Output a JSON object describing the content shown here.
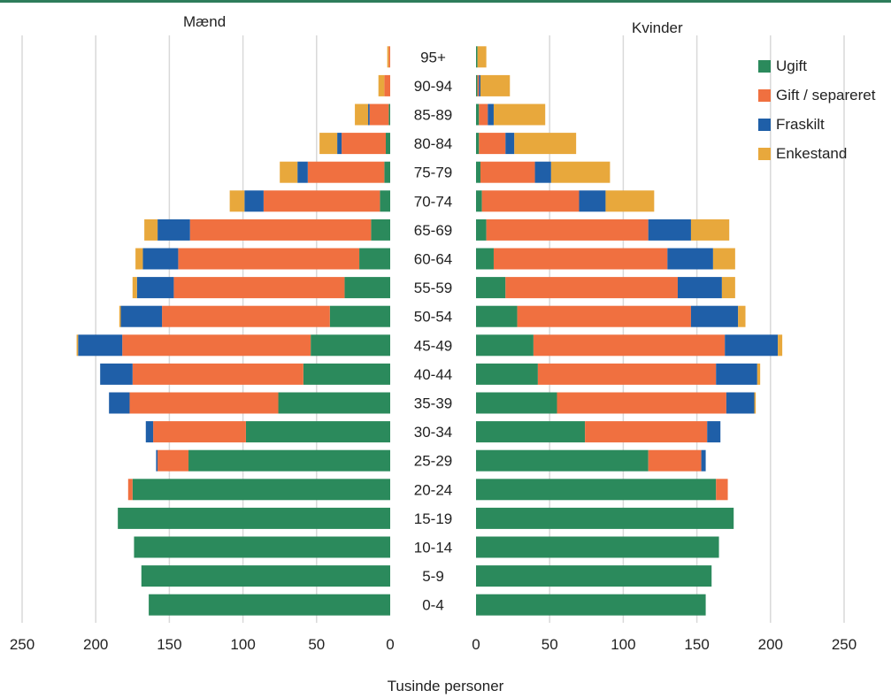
{
  "chart_data": {
    "type": "bar",
    "orientation": "horizontal",
    "stacked": true,
    "xlabel": "Tusinde personer",
    "categories": [
      "0-4",
      "5-9",
      "10-14",
      "15-19",
      "20-24",
      "25-29",
      "30-34",
      "35-39",
      "40-44",
      "45-49",
      "50-54",
      "55-59",
      "60-64",
      "65-69",
      "70-74",
      "75-79",
      "80-84",
      "85-89",
      "90-94",
      "95+"
    ],
    "xlim": [
      0,
      250
    ],
    "ticks": [
      "250",
      "200",
      "150",
      "100",
      "50",
      "0"
    ],
    "ticks_right": [
      "0",
      "50",
      "100",
      "150",
      "200",
      "250"
    ],
    "grid": true,
    "legend_position": "right",
    "panels": [
      {
        "key": "left",
        "title": "Mænd",
        "series": [
          {
            "name": "Ugift",
            "color": "#2b8a5c",
            "values": [
              164,
              169,
              174,
              185,
              175,
              137,
              98,
              76,
              59,
              54,
              41,
              31,
              21,
              13,
              7,
              4,
              3,
              1,
              0,
              0
            ]
          },
          {
            "name": "Gift / separeret",
            "color": "#f07040",
            "values": [
              0,
              0,
              0,
              0,
              3,
              21,
              63,
              101,
              116,
              128,
              114,
              116,
              123,
              123,
              79,
              52,
              30,
              13,
              4,
              1
            ]
          },
          {
            "name": "Fraskilt",
            "color": "#1f5fa8",
            "values": [
              0,
              0,
              0,
              0,
              0,
              1,
              5,
              14,
              22,
              30,
              28,
              25,
              24,
              22,
              13,
              7,
              3,
              1,
              0,
              0
            ]
          },
          {
            "name": "Enkestand",
            "color": "#e8a83c",
            "values": [
              0,
              0,
              0,
              0,
              0,
              0,
              0,
              0,
              0,
              1,
              1,
              3,
              5,
              9,
              10,
              12,
              12,
              9,
              4,
              1
            ]
          }
        ]
      },
      {
        "key": "right",
        "title": "Kvinder",
        "series": [
          {
            "name": "Ugift",
            "color": "#2b8a5c",
            "values": [
              156,
              160,
              165,
              175,
              163,
              117,
              74,
              55,
              42,
              39,
              28,
              20,
              12,
              7,
              4,
              3,
              2,
              2,
              1,
              1
            ]
          },
          {
            "name": "Gift / separeret",
            "color": "#f07040",
            "values": [
              0,
              0,
              0,
              0,
              8,
              36,
              83,
              115,
              121,
              130,
              118,
              117,
              118,
              110,
              66,
              37,
              18,
              6,
              1,
              0
            ]
          },
          {
            "name": "Fraskilt",
            "color": "#1f5fa8",
            "values": [
              0,
              0,
              0,
              0,
              0,
              3,
              9,
              19,
              28,
              36,
              32,
              30,
              31,
              29,
              18,
              11,
              6,
              4,
              1,
              0
            ]
          },
          {
            "name": "Enkestand",
            "color": "#e8a83c",
            "values": [
              0,
              0,
              0,
              0,
              0,
              0,
              0,
              1,
              2,
              3,
              5,
              9,
              15,
              26,
              33,
              40,
              42,
              35,
              20,
              6
            ]
          }
        ]
      }
    ]
  },
  "legend": {
    "items": [
      {
        "label": "Ugift",
        "color": "#2b8a5c"
      },
      {
        "label": "Gift / separeret",
        "color": "#f07040"
      },
      {
        "label": "Fraskilt",
        "color": "#1f5fa8"
      },
      {
        "label": "Enkestand",
        "color": "#e8a83c"
      }
    ]
  }
}
